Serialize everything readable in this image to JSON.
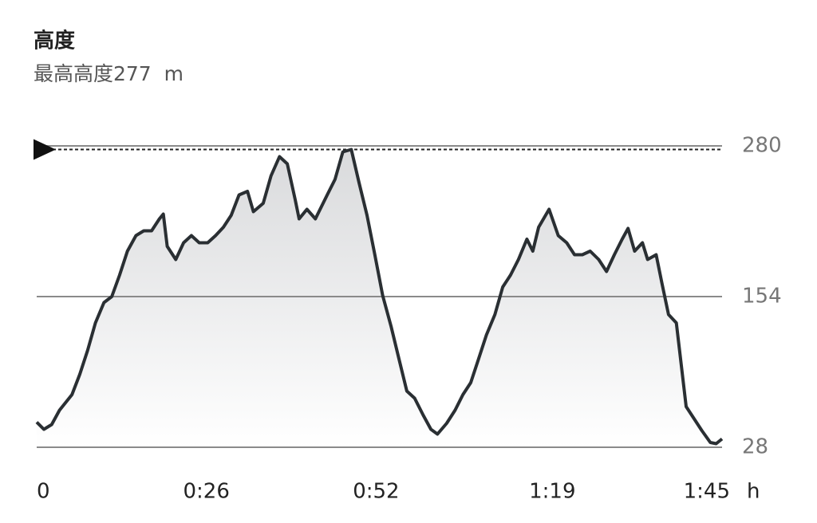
{
  "chart_data": {
    "type": "area",
    "title": "高度",
    "subtitle": "最高高度277  m",
    "x_unit": "h",
    "color": "#2a2f33",
    "reference_line": 277,
    "xlim": [
      0,
      105
    ],
    "xticks": [
      0,
      {
        "value": 26,
        "label": "0:26"
      },
      {
        "value": 52,
        "label": "0:52"
      },
      {
        "value": 79,
        "label": "1:19"
      },
      {
        "value": 105,
        "label": "1:45"
      }
    ],
    "ylim": [
      28,
      280
    ],
    "yticks": [
      28,
      154,
      280
    ],
    "grid": true,
    "x": [
      0,
      1.1,
      2.3,
      3.5,
      5.4,
      6.6,
      7.8,
      9.0,
      10.3,
      11.5,
      12.7,
      13.9,
      15.2,
      16.4,
      17.6,
      18.8,
      19.4,
      20.0,
      21.3,
      22.5,
      23.7,
      24.9,
      26.2,
      27.4,
      28.6,
      29.8,
      31.0,
      32.3,
      33.2,
      34.7,
      35.9,
      37.2,
      38.4,
      39.6,
      40.2,
      41.4,
      42.7,
      44.5,
      45.7,
      46.9,
      48.2,
      49.4,
      50.6,
      51.8,
      53.0,
      54.3,
      55.5,
      56.7,
      57.9,
      59.2,
      60.4,
      61.4,
      62.8,
      64.1,
      65.3,
      66.5,
      67.7,
      68.9,
      70.2,
      71.4,
      72.6,
      73.8,
      75.1,
      76.0,
      76.9,
      78.5,
      79.9,
      81.2,
      82.4,
      83.6,
      84.8,
      86.1,
      87.3,
      88.5,
      89.7,
      90.6,
      91.6,
      92.8,
      93.6,
      94.9,
      95.8,
      96.8,
      98.0,
      99.5,
      100.7,
      101.9,
      103.2,
      104.1,
      105.0
    ],
    "values": [
      49,
      43,
      47,
      59,
      72,
      89,
      109,
      132,
      149,
      154,
      172,
      192,
      205,
      209,
      209,
      219,
      223,
      196,
      185,
      199,
      205,
      199,
      199,
      205,
      212,
      222,
      239,
      242,
      225,
      232,
      255,
      271,
      265,
      235,
      219,
      227,
      219,
      239,
      252,
      275,
      277,
      249,
      222,
      189,
      155,
      129,
      102,
      75,
      69,
      55,
      43,
      39,
      48,
      59,
      72,
      82,
      102,
      122,
      139,
      162,
      172,
      185,
      202,
      192,
      212,
      227,
      205,
      199,
      189,
      189,
      192,
      185,
      175,
      189,
      202,
      211,
      192,
      199,
      185,
      189,
      165,
      139,
      132,
      62,
      52,
      42,
      32,
      31,
      35
    ]
  }
}
